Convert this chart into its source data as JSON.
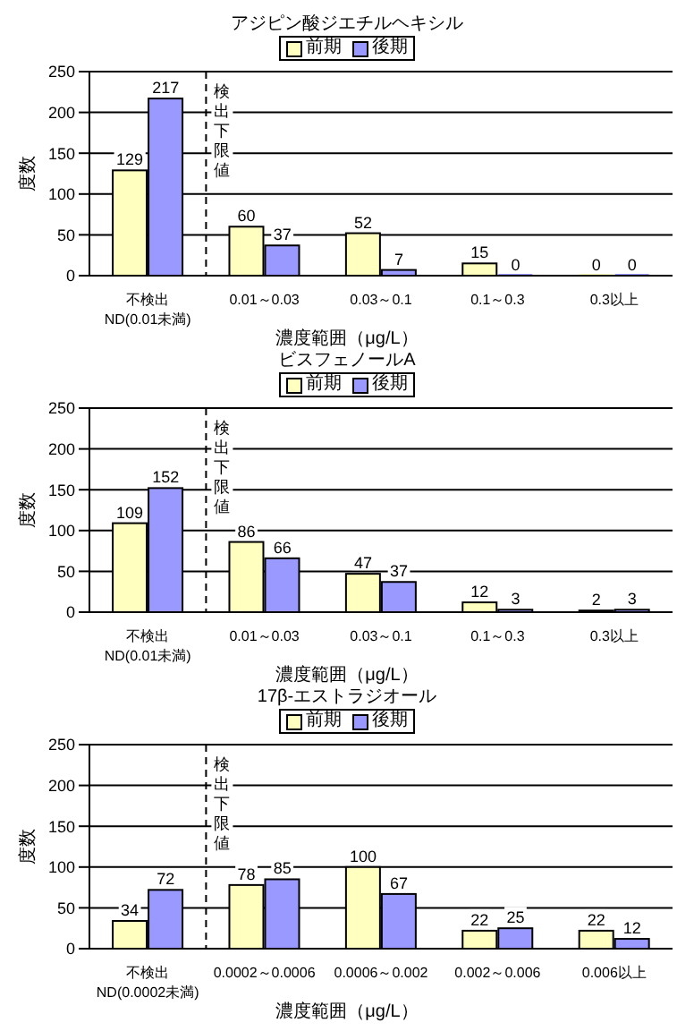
{
  "chart_data": [
    {
      "type": "bar",
      "title": "アジピン酸ジエチルヘキシル",
      "xlabel": "濃度範囲（μg/L）",
      "ylabel": "度数",
      "categories": [
        "不検出\nND(0.01未満)",
        "0.01～0.03",
        "0.03～0.1",
        "0.1～0.3",
        "0.3以上"
      ],
      "series": [
        {
          "name": "前期",
          "color": "#ffffc0",
          "values": [
            129,
            60,
            52,
            15,
            0
          ]
        },
        {
          "name": "後期",
          "color": "#9999ff",
          "values": [
            217,
            37,
            7,
            0,
            0
          ]
        }
      ],
      "ylim": [
        0,
        250
      ],
      "yticks": [
        0,
        50,
        100,
        150,
        200,
        250
      ],
      "grid": "y",
      "legend": "top",
      "data_labels": true,
      "ref_lines": [
        {
          "axis": "x",
          "value": "0.01～0.03",
          "label": "検出下限値",
          "line_style": "dashed"
        }
      ]
    },
    {
      "type": "bar",
      "title": "ビスフェノールA",
      "xlabel": "濃度範囲（μg/L）",
      "ylabel": "度数",
      "categories": [
        "不検出\nND(0.01未満)",
        "0.01～0.03",
        "0.03～0.1",
        "0.1～0.3",
        "0.3以上"
      ],
      "series": [
        {
          "name": "前期",
          "color": "#ffffc0",
          "values": [
            109,
            86,
            47,
            12,
            2
          ]
        },
        {
          "name": "後期",
          "color": "#9999ff",
          "values": [
            152,
            66,
            37,
            3,
            3
          ]
        }
      ],
      "ylim": [
        0,
        250
      ],
      "yticks": [
        0,
        50,
        100,
        150,
        200,
        250
      ],
      "grid": "y",
      "legend": "top",
      "data_labels": true,
      "ref_lines": [
        {
          "axis": "x",
          "value": "0.01～0.03",
          "label": "検出下限値",
          "line_style": "dashed"
        }
      ]
    },
    {
      "type": "bar",
      "title": "17β-エストラジオール",
      "xlabel": "濃度範囲（μg/L）",
      "ylabel": "度数",
      "categories": [
        "不検出\nND(0.0002未満)",
        "0.0002～0.0006",
        "0.0006～0.002",
        "0.002～0.006",
        "0.006以上"
      ],
      "series": [
        {
          "name": "前期",
          "color": "#ffffc0",
          "values": [
            34,
            78,
            100,
            22,
            22
          ]
        },
        {
          "name": "後期",
          "color": "#9999ff",
          "values": [
            72,
            85,
            67,
            25,
            12
          ]
        }
      ],
      "ylim": [
        0,
        250
      ],
      "yticks": [
        0,
        50,
        100,
        150,
        200,
        250
      ],
      "grid": "y",
      "legend": "top",
      "data_labels": true,
      "ref_lines": [
        {
          "axis": "x",
          "value": "0.0002～0.0006",
          "label": "検出下限値",
          "line_style": "dashed"
        }
      ]
    }
  ]
}
